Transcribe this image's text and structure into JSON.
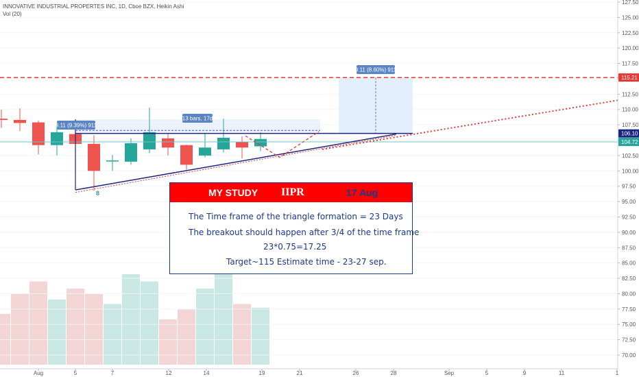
{
  "header": {
    "line1": "INNOVATIVE INDUSTRIAL PROPERTES INC, 1D, Cboe BZX, Heikin Ashi",
    "line2": "Vol (20)"
  },
  "price_labels": {
    "current": "104.72",
    "line_level": "106.10",
    "target": "115.21"
  },
  "annotations": {
    "range_label": "9.11 (9.39%) 911",
    "bars_label": "13 bars, 17d",
    "target_label": "9.11 (8.60%) 911",
    "wave_label": "8"
  },
  "study": {
    "title_left": "MY STUDY",
    "title_mid": "IIPR",
    "title_right": "17 Aug",
    "line1": "The Time frame  of the triangle formation = 23 Days",
    "line2": "The breakout should happen after 3/4 of the time frame",
    "line3": "23*0.75=17.25",
    "line4": "Target~115      Estimate time - 23-27 sep."
  },
  "colors": {
    "up": "#26a69a",
    "down": "#ef5350",
    "vol_up": "#c9e8e3",
    "vol_down": "#f3d5d5",
    "target_red": "#e53935",
    "support": "#1a237e",
    "study_red": "#ff0000",
    "study_blue": "#1a3a8a"
  },
  "chart_data": {
    "type": "candlestick",
    "y_axis": {
      "range": [
        70.0,
        127.5
      ],
      "ticks": [
        127.5,
        125.0,
        122.5,
        120.0,
        117.5,
        115.0,
        112.5,
        110.0,
        107.5,
        105.0,
        102.5,
        100.0,
        97.5,
        95.0,
        92.5,
        90.0,
        87.5,
        85.0,
        82.5,
        80.0,
        77.5,
        75.0,
        72.5,
        70.0
      ]
    },
    "x_axis": {
      "ticks": [
        "Aug",
        "5",
        "7",
        "12",
        "14",
        "19",
        "21",
        "26",
        "28",
        "Sep",
        "5",
        "9",
        "11",
        "1"
      ]
    },
    "candles": [
      {
        "open": 108.5,
        "close": 108.3,
        "high": 110.0,
        "low": 107.0
      },
      {
        "open": 108.3,
        "close": 107.8,
        "high": 110.2,
        "low": 106.5
      },
      {
        "open": 107.9,
        "close": 104.2,
        "high": 108.2,
        "low": 102.7
      },
      {
        "open": 104.2,
        "close": 106.3,
        "high": 107.4,
        "low": 102.5
      },
      {
        "open": 106.0,
        "close": 104.4,
        "high": 106.7,
        "low": 101.0
      },
      {
        "open": 104.4,
        "close": 100.0,
        "high": 105.8,
        "low": 96.8
      },
      {
        "open": 101.7,
        "close": 101.7,
        "high": 102.6,
        "low": 100.0
      },
      {
        "open": 101.5,
        "close": 104.5,
        "high": 105.3,
        "low": 101.0
      },
      {
        "open": 103.5,
        "close": 106.3,
        "high": 110.3,
        "low": 102.9
      },
      {
        "open": 105.3,
        "close": 103.8,
        "high": 106.2,
        "low": 102.5
      },
      {
        "open": 104.2,
        "close": 101.0,
        "high": 104.3,
        "low": 100.2
      },
      {
        "open": 102.5,
        "close": 103.8,
        "high": 106.2,
        "low": 102.2
      },
      {
        "open": 103.5,
        "close": 105.4,
        "high": 108.5,
        "low": 103.0
      },
      {
        "open": 104.7,
        "close": 103.8,
        "high": 105.6,
        "low": 102.0
      },
      {
        "open": 104.0,
        "close": 105.2,
        "high": 106.3,
        "low": 103.2
      }
    ],
    "volume": [
      0.56,
      0.78,
      0.92,
      0.72,
      0.84,
      0.78,
      0.67,
      1.0,
      0.92,
      0.5,
      0.61,
      0.84,
      1.0,
      0.67,
      0.63
    ]
  }
}
